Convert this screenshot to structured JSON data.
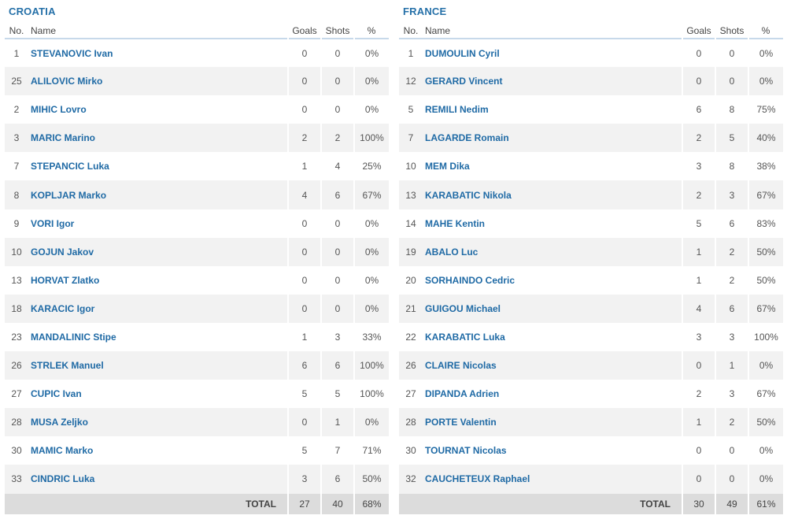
{
  "columns": {
    "no": "No.",
    "name": "Name",
    "goals": "Goals",
    "shots": "Shots",
    "pct": "%"
  },
  "total_label": "TOTAL",
  "teams": [
    {
      "name": "CROATIA",
      "players": [
        {
          "no": "1",
          "name": "STEVANOVIC Ivan",
          "goals": "0",
          "shots": "0",
          "pct": "0%"
        },
        {
          "no": "25",
          "name": "ALILOVIC Mirko",
          "goals": "0",
          "shots": "0",
          "pct": "0%"
        },
        {
          "no": "2",
          "name": "MIHIC Lovro",
          "goals": "0",
          "shots": "0",
          "pct": "0%"
        },
        {
          "no": "3",
          "name": "MARIC Marino",
          "goals": "2",
          "shots": "2",
          "pct": "100%"
        },
        {
          "no": "7",
          "name": "STEPANCIC Luka",
          "goals": "1",
          "shots": "4",
          "pct": "25%"
        },
        {
          "no": "8",
          "name": "KOPLJAR Marko",
          "goals": "4",
          "shots": "6",
          "pct": "67%"
        },
        {
          "no": "9",
          "name": "VORI Igor",
          "goals": "0",
          "shots": "0",
          "pct": "0%"
        },
        {
          "no": "10",
          "name": "GOJUN Jakov",
          "goals": "0",
          "shots": "0",
          "pct": "0%"
        },
        {
          "no": "13",
          "name": "HORVAT Zlatko",
          "goals": "0",
          "shots": "0",
          "pct": "0%"
        },
        {
          "no": "18",
          "name": "KARACIC Igor",
          "goals": "0",
          "shots": "0",
          "pct": "0%"
        },
        {
          "no": "23",
          "name": "MANDALINIC Stipe",
          "goals": "1",
          "shots": "3",
          "pct": "33%"
        },
        {
          "no": "26",
          "name": "STRLEK Manuel",
          "goals": "6",
          "shots": "6",
          "pct": "100%"
        },
        {
          "no": "27",
          "name": "CUPIC Ivan",
          "goals": "5",
          "shots": "5",
          "pct": "100%"
        },
        {
          "no": "28",
          "name": "MUSA Zeljko",
          "goals": "0",
          "shots": "1",
          "pct": "0%"
        },
        {
          "no": "30",
          "name": "MAMIC Marko",
          "goals": "5",
          "shots": "7",
          "pct": "71%"
        },
        {
          "no": "33",
          "name": "CINDRIC Luka",
          "goals": "3",
          "shots": "6",
          "pct": "50%"
        }
      ],
      "total": {
        "goals": "27",
        "shots": "40",
        "pct": "68%"
      }
    },
    {
      "name": "FRANCE",
      "players": [
        {
          "no": "1",
          "name": "DUMOULIN Cyril",
          "goals": "0",
          "shots": "0",
          "pct": "0%"
        },
        {
          "no": "12",
          "name": "GERARD Vincent",
          "goals": "0",
          "shots": "0",
          "pct": "0%"
        },
        {
          "no": "5",
          "name": "REMILI Nedim",
          "goals": "6",
          "shots": "8",
          "pct": "75%"
        },
        {
          "no": "7",
          "name": "LAGARDE Romain",
          "goals": "2",
          "shots": "5",
          "pct": "40%"
        },
        {
          "no": "10",
          "name": "MEM Dika",
          "goals": "3",
          "shots": "8",
          "pct": "38%"
        },
        {
          "no": "13",
          "name": "KARABATIC Nikola",
          "goals": "2",
          "shots": "3",
          "pct": "67%"
        },
        {
          "no": "14",
          "name": "MAHE Kentin",
          "goals": "5",
          "shots": "6",
          "pct": "83%"
        },
        {
          "no": "19",
          "name": "ABALO Luc",
          "goals": "1",
          "shots": "2",
          "pct": "50%"
        },
        {
          "no": "20",
          "name": "SORHAINDO Cedric",
          "goals": "1",
          "shots": "2",
          "pct": "50%"
        },
        {
          "no": "21",
          "name": "GUIGOU Michael",
          "goals": "4",
          "shots": "6",
          "pct": "67%"
        },
        {
          "no": "22",
          "name": "KARABATIC Luka",
          "goals": "3",
          "shots": "3",
          "pct": "100%"
        },
        {
          "no": "26",
          "name": "CLAIRE Nicolas",
          "goals": "0",
          "shots": "1",
          "pct": "0%"
        },
        {
          "no": "27",
          "name": "DIPANDA Adrien",
          "goals": "2",
          "shots": "3",
          "pct": "67%"
        },
        {
          "no": "28",
          "name": "PORTE Valentin",
          "goals": "1",
          "shots": "2",
          "pct": "50%"
        },
        {
          "no": "30",
          "name": "TOURNAT Nicolas",
          "goals": "0",
          "shots": "0",
          "pct": "0%"
        },
        {
          "no": "32",
          "name": "CAUCHETEUX Raphael",
          "goals": "0",
          "shots": "0",
          "pct": "0%"
        }
      ],
      "total": {
        "goals": "30",
        "shots": "49",
        "pct": "61%"
      }
    }
  ]
}
